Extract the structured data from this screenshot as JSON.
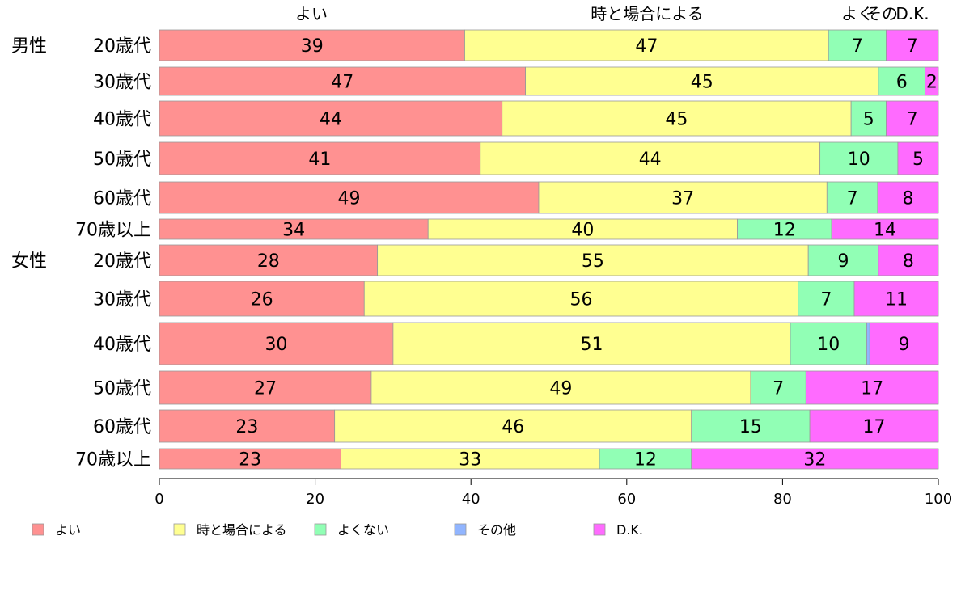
{
  "chart_data": {
    "type": "bar",
    "orientation": "horizontal",
    "stacked": true,
    "xlim": [
      0,
      100
    ],
    "xticks": [
      0,
      20,
      40,
      60,
      80,
      100
    ],
    "grid": false,
    "legend_position": "bottom",
    "top_labels": [
      "よい",
      "時と場合による",
      "よくない",
      "その他",
      "D.K."
    ],
    "top_labels_rendered": [
      "よい",
      "時と場合による",
      "よく",
      "その",
      "D.K."
    ],
    "groups": [
      {
        "label": "男性",
        "rows": [
          0,
          1,
          2,
          3,
          4,
          5
        ]
      },
      {
        "label": "女性",
        "rows": [
          6,
          7,
          8,
          9,
          10,
          11
        ]
      }
    ],
    "categories": [
      "20歳代",
      "30歳代",
      "40歳代",
      "50歳代",
      "60歳代",
      "70歳以上",
      "20歳代",
      "30歳代",
      "40歳代",
      "50歳代",
      "60歳代",
      "70歳以上"
    ],
    "series": [
      {
        "name": "よい",
        "color": "#FF9191",
        "values": [
          39.2,
          47.0,
          44.0,
          41.2,
          48.7,
          34.5,
          28.0,
          26.3,
          30.0,
          27.2,
          22.5,
          23.3
        ]
      },
      {
        "name": "時と場合による",
        "color": "#FFFF91",
        "values": [
          46.7,
          45.3,
          44.8,
          43.6,
          37.0,
          39.7,
          55.3,
          55.7,
          51.0,
          48.7,
          45.8,
          33.2
        ]
      },
      {
        "name": "よくない",
        "color": "#91FFB5",
        "values": [
          7.4,
          6.0,
          4.5,
          10.0,
          6.5,
          12.1,
          9.0,
          7.2,
          9.8,
          7.1,
          15.2,
          11.8
        ]
      },
      {
        "name": "その他",
        "color": "#91B5FF",
        "values": [
          0.0,
          0.0,
          0.0,
          0.0,
          0.0,
          0.0,
          0.0,
          0.0,
          0.4,
          0.0,
          0.0,
          0.0
        ]
      },
      {
        "name": "D.K.",
        "color": "#FF6BFF",
        "values": [
          6.7,
          1.7,
          6.7,
          5.2,
          7.8,
          13.7,
          7.7,
          10.8,
          8.8,
          17.0,
          16.5,
          31.7
        ]
      }
    ],
    "data_labels": [
      [
        "39",
        "47",
        "7",
        "",
        "7"
      ],
      [
        "47",
        "45",
        "6",
        "",
        "2"
      ],
      [
        "44",
        "45",
        "5",
        "",
        "7"
      ],
      [
        "41",
        "44",
        "10",
        "",
        "5"
      ],
      [
        "49",
        "37",
        "7",
        "",
        "8"
      ],
      [
        "34",
        "40",
        "12",
        "",
        "14"
      ],
      [
        "28",
        "55",
        "9",
        "",
        "8"
      ],
      [
        "26",
        "56",
        "7",
        "",
        "11"
      ],
      [
        "30",
        "51",
        "10",
        "",
        "9"
      ],
      [
        "27",
        "49",
        "7",
        "",
        "17"
      ],
      [
        "23",
        "46",
        "15",
        "",
        "17"
      ],
      [
        "23",
        "33",
        "12",
        "",
        "32"
      ]
    ]
  }
}
